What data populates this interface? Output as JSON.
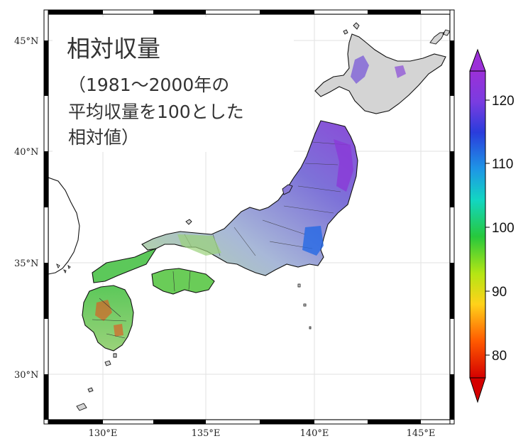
{
  "title": {
    "main": "相対収量",
    "line1": "（1981〜2000年の",
    "line2": "平均収量を100とした",
    "line3": "相対値）"
  },
  "axes": {
    "lat_ticks": [
      "45°N",
      "40°N",
      "35°N",
      "30°N"
    ],
    "lon_ticks": [
      "130°E",
      "135°E",
      "140°E",
      "145°E"
    ]
  },
  "colorbar": {
    "ticks": [
      "120",
      "110",
      "100",
      "90",
      "80"
    ],
    "colors": [
      "#d40000",
      "#ff5a00",
      "#ffd21a",
      "#b4e614",
      "#27c83c",
      "#12d6c2",
      "#1e96e6",
      "#2a3cdc",
      "#7a3ce0",
      "#9b30d8"
    ]
  },
  "colors": {
    "land": "#d4d4d4",
    "coast": "#111111",
    "gridline": "#e2e2e2",
    "frame": "#000000"
  }
}
